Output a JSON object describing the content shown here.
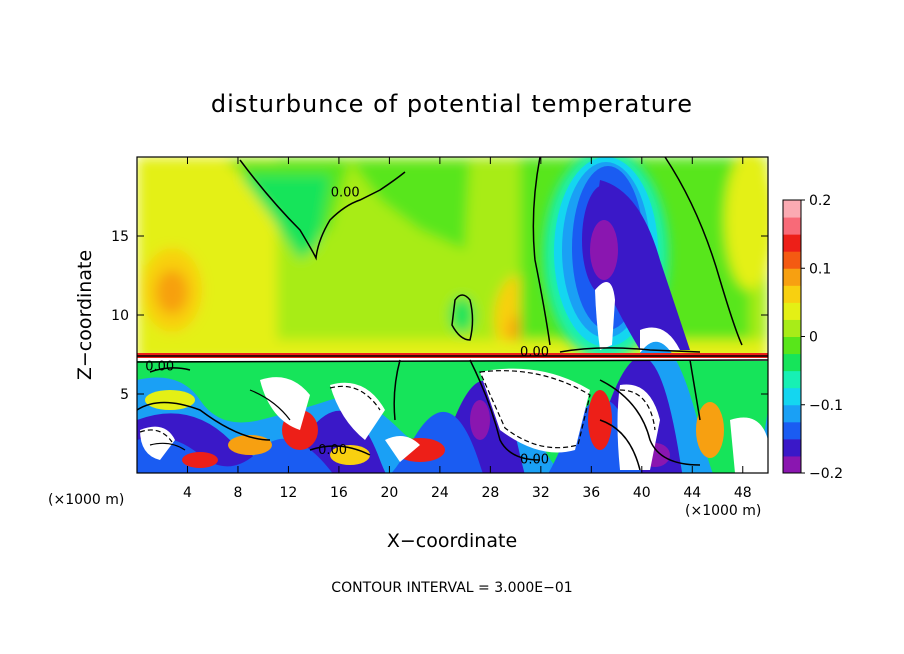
{
  "chart_data": {
    "type": "heatmap",
    "title": "disturbunce of potential temperature",
    "xlabel": "X−coordinate",
    "ylabel": "Z−coordinate",
    "x_unit": "(×1000 m)",
    "x_unit_right": "(×1000 m)",
    "xlim": [
      0,
      50
    ],
    "ylim": [
      0,
      20
    ],
    "x_ticks": [
      4,
      8,
      12,
      16,
      20,
      24,
      28,
      32,
      36,
      40,
      44,
      48
    ],
    "x_tick_labels": [
      "4",
      "8",
      "12",
      "16",
      "20",
      "24",
      "28",
      "32",
      "36",
      "40",
      "44",
      "48"
    ],
    "y_ticks": [
      5,
      10,
      15
    ],
    "y_tick_labels": [
      "5",
      "10",
      "15"
    ],
    "contour_interval_text": "CONTOUR INTERVAL = 3.000E−01",
    "contour_labels": [
      {
        "text": "0.00",
        "x": 16.5,
        "y": 17.5
      },
      {
        "text": "0.00",
        "x": 31.5,
        "y": 7.4
      },
      {
        "text": "0.00",
        "x": 1.8,
        "y": 6.5
      },
      {
        "text": "0.00",
        "x": 15.5,
        "y": 1.2
      },
      {
        "text": "0.00",
        "x": 31.5,
        "y": 0.6
      }
    ],
    "colorbar": {
      "range": [
        -0.2,
        0.2
      ],
      "tick_values": [
        0.2,
        0.1,
        0,
        -0.1,
        -0.2
      ],
      "tick_labels": [
        "0.2",
        "0.1",
        "0",
        "−0.1",
        "−0.2"
      ],
      "colors": [
        "#8a16b0",
        "#3a18c8",
        "#1a5cf2",
        "#1aa0f5",
        "#14d6f0",
        "#17f0b4",
        "#16e45a",
        "#58e61a",
        "#a8ec18",
        "#e4f015",
        "#f8d010",
        "#f7a011",
        "#f45a12",
        "#ed1f18",
        "#f86a78",
        "#fbaab2"
      ]
    }
  }
}
